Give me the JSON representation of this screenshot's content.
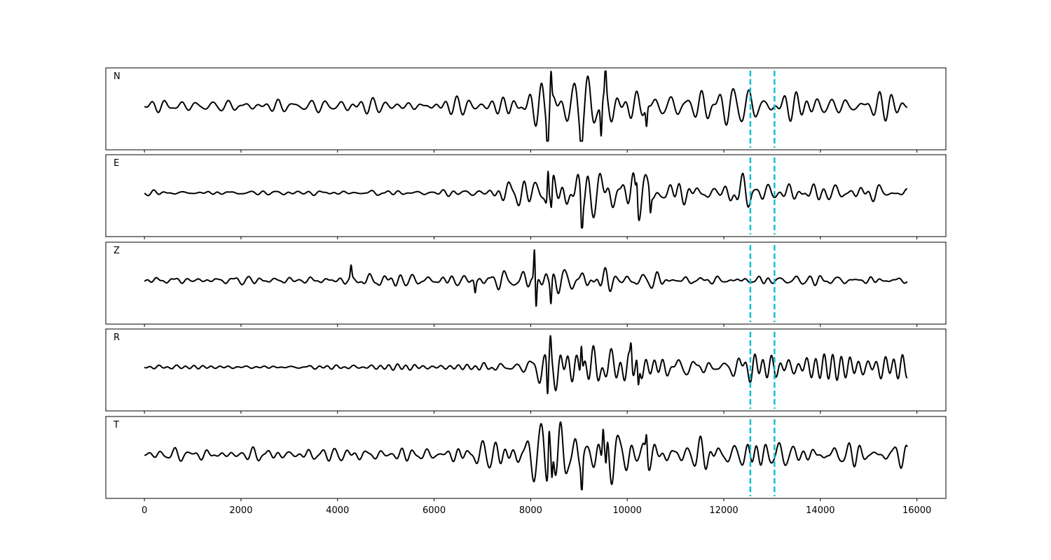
{
  "chart_data": {
    "type": "line",
    "xlim": [
      -800,
      16600
    ],
    "x_ticks": [
      0,
      2000,
      4000,
      6000,
      8000,
      10000,
      12000,
      14000,
      16000
    ],
    "x_tick_labels": [
      "0",
      "2000",
      "4000",
      "6000",
      "8000",
      "10000",
      "12000",
      "14000",
      "16000"
    ],
    "x_range": [
      0,
      15800
    ],
    "grid": false,
    "line_color": "#000000",
    "marker_color": "#17becf",
    "markers": [
      {
        "x": 12550,
        "style": "dashed"
      },
      {
        "x": 13050,
        "style": "dashed"
      }
    ],
    "panels": [
      {
        "label": "N",
        "noise": 0.16,
        "envelope": [
          [
            0,
            0.16
          ],
          [
            2000,
            0.18
          ],
          [
            4000,
            0.18
          ],
          [
            6000,
            0.2
          ],
          [
            7000,
            0.32
          ],
          [
            7800,
            0.55
          ],
          [
            8400,
            1.0
          ],
          [
            9000,
            0.9
          ],
          [
            9600,
            0.8
          ],
          [
            10400,
            0.55
          ],
          [
            11200,
            0.4
          ],
          [
            12600,
            0.55
          ],
          [
            13600,
            0.35
          ],
          [
            14800,
            0.33
          ],
          [
            15800,
            0.3
          ]
        ],
        "spikes": [
          [
            8350,
            -1.0
          ],
          [
            8420,
            0.95
          ],
          [
            9050,
            -0.9
          ],
          [
            9460,
            -0.88
          ],
          [
            9550,
            0.72
          ],
          [
            10400,
            -0.55
          ]
        ]
      },
      {
        "label": "E",
        "noise": 0.06,
        "envelope": [
          [
            0,
            0.06
          ],
          [
            4000,
            0.07
          ],
          [
            6800,
            0.08
          ],
          [
            7200,
            0.2
          ],
          [
            7800,
            0.4
          ],
          [
            8400,
            0.85
          ],
          [
            9100,
            0.75
          ],
          [
            9800,
            0.65
          ],
          [
            10200,
            0.7
          ],
          [
            11200,
            0.35
          ],
          [
            12600,
            0.4
          ],
          [
            13500,
            0.25
          ],
          [
            15800,
            0.22
          ]
        ],
        "spikes": [
          [
            8360,
            1.0
          ],
          [
            8430,
            -0.65
          ],
          [
            9060,
            -0.95
          ],
          [
            10200,
            0.65
          ],
          [
            10480,
            -0.55
          ]
        ]
      },
      {
        "label": "Z",
        "noise": 0.1,
        "envelope": [
          [
            0,
            0.1
          ],
          [
            4000,
            0.1
          ],
          [
            4300,
            0.2
          ],
          [
            5400,
            0.22
          ],
          [
            6000,
            0.12
          ],
          [
            6800,
            0.2
          ],
          [
            7800,
            0.35
          ],
          [
            8200,
            0.45
          ],
          [
            9200,
            0.4
          ],
          [
            9800,
            0.3
          ],
          [
            11000,
            0.15
          ],
          [
            15800,
            0.12
          ]
        ],
        "spikes": [
          [
            4280,
            0.35
          ],
          [
            8080,
            1.0
          ],
          [
            8110,
            -0.85
          ],
          [
            8420,
            -0.65
          ],
          [
            6850,
            -0.32
          ]
        ]
      },
      {
        "label": "R",
        "noise": 0.05,
        "envelope": [
          [
            0,
            0.05
          ],
          [
            4000,
            0.06
          ],
          [
            6800,
            0.08
          ],
          [
            7400,
            0.2
          ],
          [
            8000,
            0.45
          ],
          [
            8400,
            0.7
          ],
          [
            9100,
            0.85
          ],
          [
            9800,
            0.7
          ],
          [
            10300,
            0.6
          ],
          [
            11200,
            0.35
          ],
          [
            12600,
            0.4
          ],
          [
            13500,
            0.3
          ],
          [
            15800,
            0.3
          ]
        ],
        "spikes": [
          [
            8350,
            -1.0
          ],
          [
            8410,
            0.6
          ],
          [
            9050,
            0.88
          ],
          [
            10230,
            -0.72
          ],
          [
            10080,
            0.55
          ]
        ]
      },
      {
        "label": "T",
        "noise": 0.14,
        "envelope": [
          [
            0,
            0.14
          ],
          [
            2000,
            0.18
          ],
          [
            4000,
            0.18
          ],
          [
            6000,
            0.2
          ],
          [
            7000,
            0.35
          ],
          [
            7800,
            0.6
          ],
          [
            8400,
            1.0
          ],
          [
            9000,
            0.85
          ],
          [
            9600,
            0.8
          ],
          [
            10400,
            0.5
          ],
          [
            11200,
            0.35
          ],
          [
            12600,
            0.5
          ],
          [
            13600,
            0.3
          ],
          [
            14900,
            0.32
          ],
          [
            15800,
            0.3
          ]
        ],
        "spikes": [
          [
            8380,
            1.0
          ],
          [
            8440,
            -0.95
          ],
          [
            9060,
            -0.85
          ],
          [
            9500,
            0.85
          ],
          [
            9560,
            -0.72
          ],
          [
            10400,
            0.62
          ]
        ]
      }
    ]
  }
}
